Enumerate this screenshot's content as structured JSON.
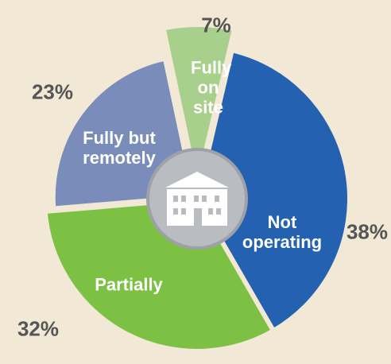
{
  "chart_data": {
    "type": "pie",
    "categories": [
      "Fully on site",
      "Not operating",
      "Partially",
      "Fully but remotely"
    ],
    "values": [
      7,
      38,
      32,
      23
    ],
    "value_labels": [
      "7%",
      "38%",
      "32%",
      "23%"
    ],
    "colors": [
      "#a8cf8c",
      "#2461b0",
      "#7cc143",
      "#7a8cb9"
    ]
  }
}
